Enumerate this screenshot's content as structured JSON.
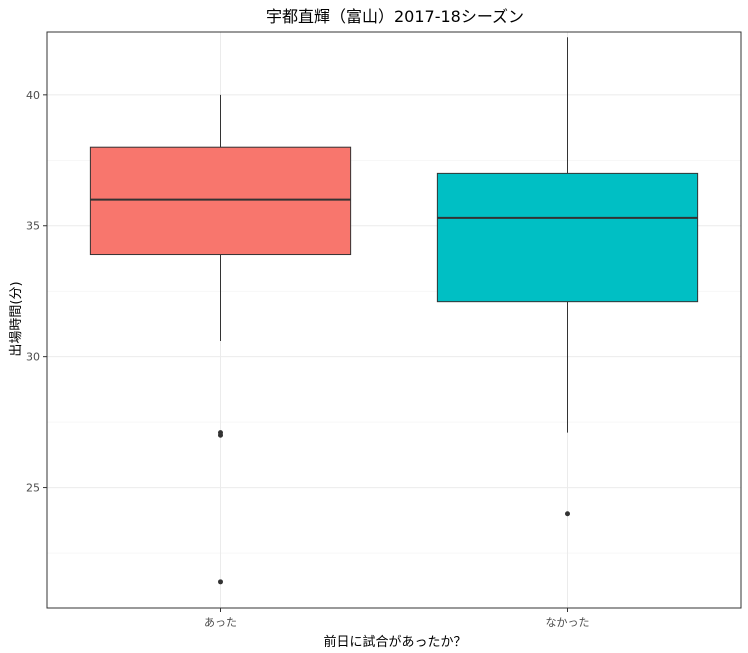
{
  "chart_data": {
    "type": "boxplot",
    "title": "宇都直輝（富山）2017-18シーズン",
    "xlabel": "前日に試合があったか？",
    "ylabel": "出場時間(分)",
    "categories": [
      "あった",
      "なかった"
    ],
    "ylim": [
      20.4,
      42.4
    ],
    "yticks": [
      25,
      30,
      35,
      40
    ],
    "grid": true,
    "legend": "none",
    "boxes": [
      {
        "category": "あった",
        "whisker_low": 30.6,
        "q1": 33.9,
        "median": 36.0,
        "q3": 38.0,
        "whisker_high": 40.0,
        "outliers": [
          27.0,
          27.1,
          21.4
        ],
        "color": "#F8766D"
      },
      {
        "category": "なかった",
        "whisker_low": 27.1,
        "q1": 32.1,
        "median": 35.3,
        "q3": 37.0,
        "whisker_high": 42.2,
        "outliers": [
          24.0
        ],
        "color": "#00BFC4"
      }
    ]
  }
}
